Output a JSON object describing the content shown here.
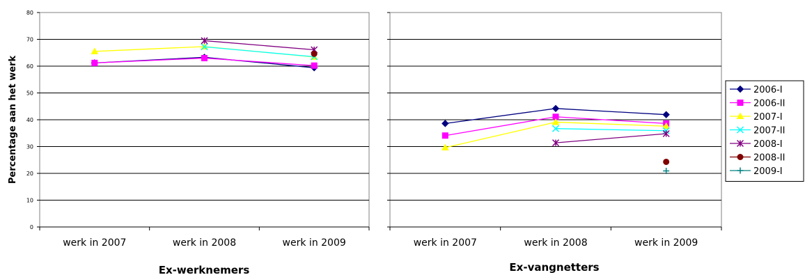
{
  "chart_data": {
    "type": "line",
    "ylabel": "Percentage aan het werk",
    "ylim": [
      0,
      80
    ],
    "yticks": [
      0,
      10,
      20,
      30,
      40,
      50,
      60,
      70,
      80
    ],
    "grid": true,
    "legend_placement": "right",
    "categories": [
      "werk in 2007",
      "werk in 2008",
      "werk in 2009"
    ],
    "series_styles": [
      {
        "name": "2006-I",
        "color": "#000080",
        "marker": "diamond"
      },
      {
        "name": "2006-II",
        "color": "#FF00FF",
        "marker": "square"
      },
      {
        "name": "2007-I",
        "color": "#FFFF00",
        "marker": "triangle"
      },
      {
        "name": "2007-II",
        "color": "#00FFFF",
        "marker": "x"
      },
      {
        "name": "2008-I",
        "color": "#800080",
        "marker": "star"
      },
      {
        "name": "2008-II",
        "color": "#800000",
        "marker": "circle"
      },
      {
        "name": "2009-I",
        "color": "#008080",
        "marker": "plus"
      }
    ],
    "panels": [
      {
        "xlabel": "Ex-werknemers",
        "series": [
          {
            "name": "2006-I",
            "values": [
              61.2,
              63.3,
              59.4
            ]
          },
          {
            "name": "2006-II",
            "values": [
              61.2,
              63.0,
              60.2
            ]
          },
          {
            "name": "2007-I",
            "values": [
              65.5,
              67.3,
              63.4
            ]
          },
          {
            "name": "2007-II",
            "values": [
              null,
              67.2,
              63.5
            ]
          },
          {
            "name": "2008-I",
            "values": [
              null,
              69.5,
              66.1
            ]
          },
          {
            "name": "2008-II",
            "values": [
              null,
              null,
              64.6
            ]
          },
          {
            "name": "2009-I",
            "values": [
              null,
              null,
              null
            ]
          }
        ]
      },
      {
        "xlabel": "Ex-vangnetters",
        "series": [
          {
            "name": "2006-I",
            "values": [
              38.6,
              44.2,
              41.9
            ]
          },
          {
            "name": "2006-II",
            "values": [
              34.1,
              41.1,
              38.6
            ]
          },
          {
            "name": "2007-I",
            "values": [
              29.6,
              39.1,
              37.6
            ]
          },
          {
            "name": "2007-II",
            "values": [
              null,
              36.7,
              35.9
            ]
          },
          {
            "name": "2008-I",
            "values": [
              null,
              31.4,
              34.8
            ]
          },
          {
            "name": "2008-II",
            "values": [
              null,
              null,
              24.3
            ]
          },
          {
            "name": "2009-I",
            "values": [
              null,
              null,
              20.9
            ]
          }
        ]
      }
    ]
  }
}
